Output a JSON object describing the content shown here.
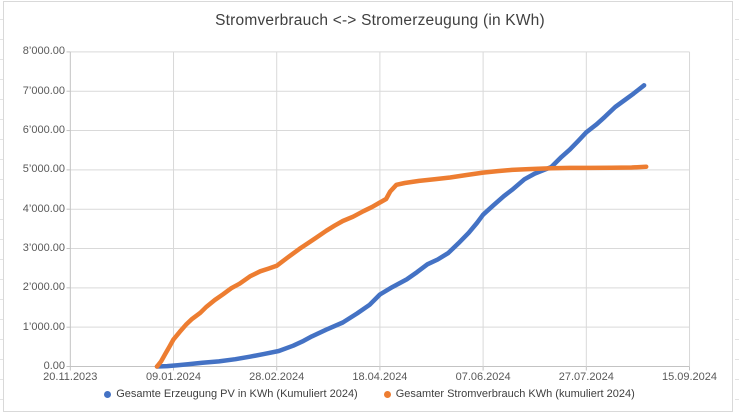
{
  "chart_data": {
    "type": "line",
    "title": "Stromverbrauch <-> Stromerzeugung (in KWh)",
    "grid": true,
    "legend_position": "bottom",
    "x_axis": {
      "unit": "date",
      "tick_labels": [
        "20.11.2023",
        "09.01.2024",
        "28.02.2024",
        "18.04.2024",
        "07.06.2024",
        "27.07.2024",
        "15.09.2024"
      ],
      "tick_day_offsets_from_2024_01_01": [
        -42,
        8,
        58,
        108,
        158,
        208,
        258
      ]
    },
    "y_axis": {
      "tick_labels": [
        "0.00",
        "1’000.00",
        "2’000.00",
        "3’000.00",
        "4’000.00",
        "5’000.00",
        "6’000.00",
        "7’000.00",
        "8’000.00"
      ],
      "tick_values": [
        0,
        1000,
        2000,
        3000,
        4000,
        5000,
        6000,
        7000,
        8000
      ],
      "range": [
        0,
        8000
      ]
    },
    "series": [
      {
        "name": "Gesamte Erzeugung PV in KWh (Kumuliert 2024)",
        "color": "#4472C4",
        "x_unit": "days_since_2024-01-01",
        "points": [
          [
            0,
            0
          ],
          [
            5,
            10
          ],
          [
            10,
            30
          ],
          [
            15,
            55
          ],
          [
            22,
            95
          ],
          [
            30,
            130
          ],
          [
            38,
            185
          ],
          [
            45,
            250
          ],
          [
            52,
            320
          ],
          [
            59,
            395
          ],
          [
            66,
            530
          ],
          [
            71,
            650
          ],
          [
            75,
            765
          ],
          [
            82,
            935
          ],
          [
            90,
            1120
          ],
          [
            97,
            1350
          ],
          [
            103,
            1570
          ],
          [
            108,
            1830
          ],
          [
            114,
            2020
          ],
          [
            121,
            2215
          ],
          [
            126,
            2400
          ],
          [
            131,
            2600
          ],
          [
            136,
            2720
          ],
          [
            141,
            2880
          ],
          [
            146,
            3130
          ],
          [
            151,
            3400
          ],
          [
            155,
            3650
          ],
          [
            158,
            3860
          ],
          [
            163,
            4100
          ],
          [
            168,
            4330
          ],
          [
            172,
            4490
          ],
          [
            178,
            4760
          ],
          [
            183,
            4905
          ],
          [
            188,
            5010
          ],
          [
            191,
            5070
          ],
          [
            196,
            5330
          ],
          [
            200,
            5515
          ],
          [
            204,
            5735
          ],
          [
            208,
            5955
          ],
          [
            213,
            6160
          ],
          [
            217,
            6350
          ],
          [
            222,
            6600
          ],
          [
            227,
            6790
          ],
          [
            231,
            6945
          ],
          [
            236,
            7150
          ]
        ]
      },
      {
        "name": "Gesamter Stromverbrauch KWh (kumuliert 2024)",
        "color": "#ED7D31",
        "x_unit": "days_since_2024-01-01",
        "points": [
          [
            0,
            0
          ],
          [
            2,
            130
          ],
          [
            4,
            320
          ],
          [
            6,
            500
          ],
          [
            8,
            690
          ],
          [
            11,
            880
          ],
          [
            14,
            1060
          ],
          [
            17,
            1210
          ],
          [
            21,
            1365
          ],
          [
            24,
            1520
          ],
          [
            28,
            1690
          ],
          [
            32,
            1835
          ],
          [
            36,
            1990
          ],
          [
            40,
            2105
          ],
          [
            45,
            2290
          ],
          [
            50,
            2420
          ],
          [
            54,
            2490
          ],
          [
            58,
            2560
          ],
          [
            63,
            2760
          ],
          [
            69,
            2990
          ],
          [
            73,
            3130
          ],
          [
            77,
            3270
          ],
          [
            82,
            3450
          ],
          [
            86,
            3580
          ],
          [
            90,
            3700
          ],
          [
            95,
            3810
          ],
          [
            100,
            3950
          ],
          [
            104,
            4050
          ],
          [
            108,
            4170
          ],
          [
            111,
            4260
          ],
          [
            113,
            4450
          ],
          [
            116,
            4620
          ],
          [
            120,
            4665
          ],
          [
            127,
            4720
          ],
          [
            135,
            4765
          ],
          [
            142,
            4805
          ],
          [
            150,
            4870
          ],
          [
            158,
            4930
          ],
          [
            165,
            4970
          ],
          [
            172,
            5000
          ],
          [
            180,
            5020
          ],
          [
            191,
            5040
          ],
          [
            200,
            5050
          ],
          [
            210,
            5050
          ],
          [
            220,
            5055
          ],
          [
            230,
            5060
          ],
          [
            237,
            5080
          ]
        ]
      }
    ]
  }
}
